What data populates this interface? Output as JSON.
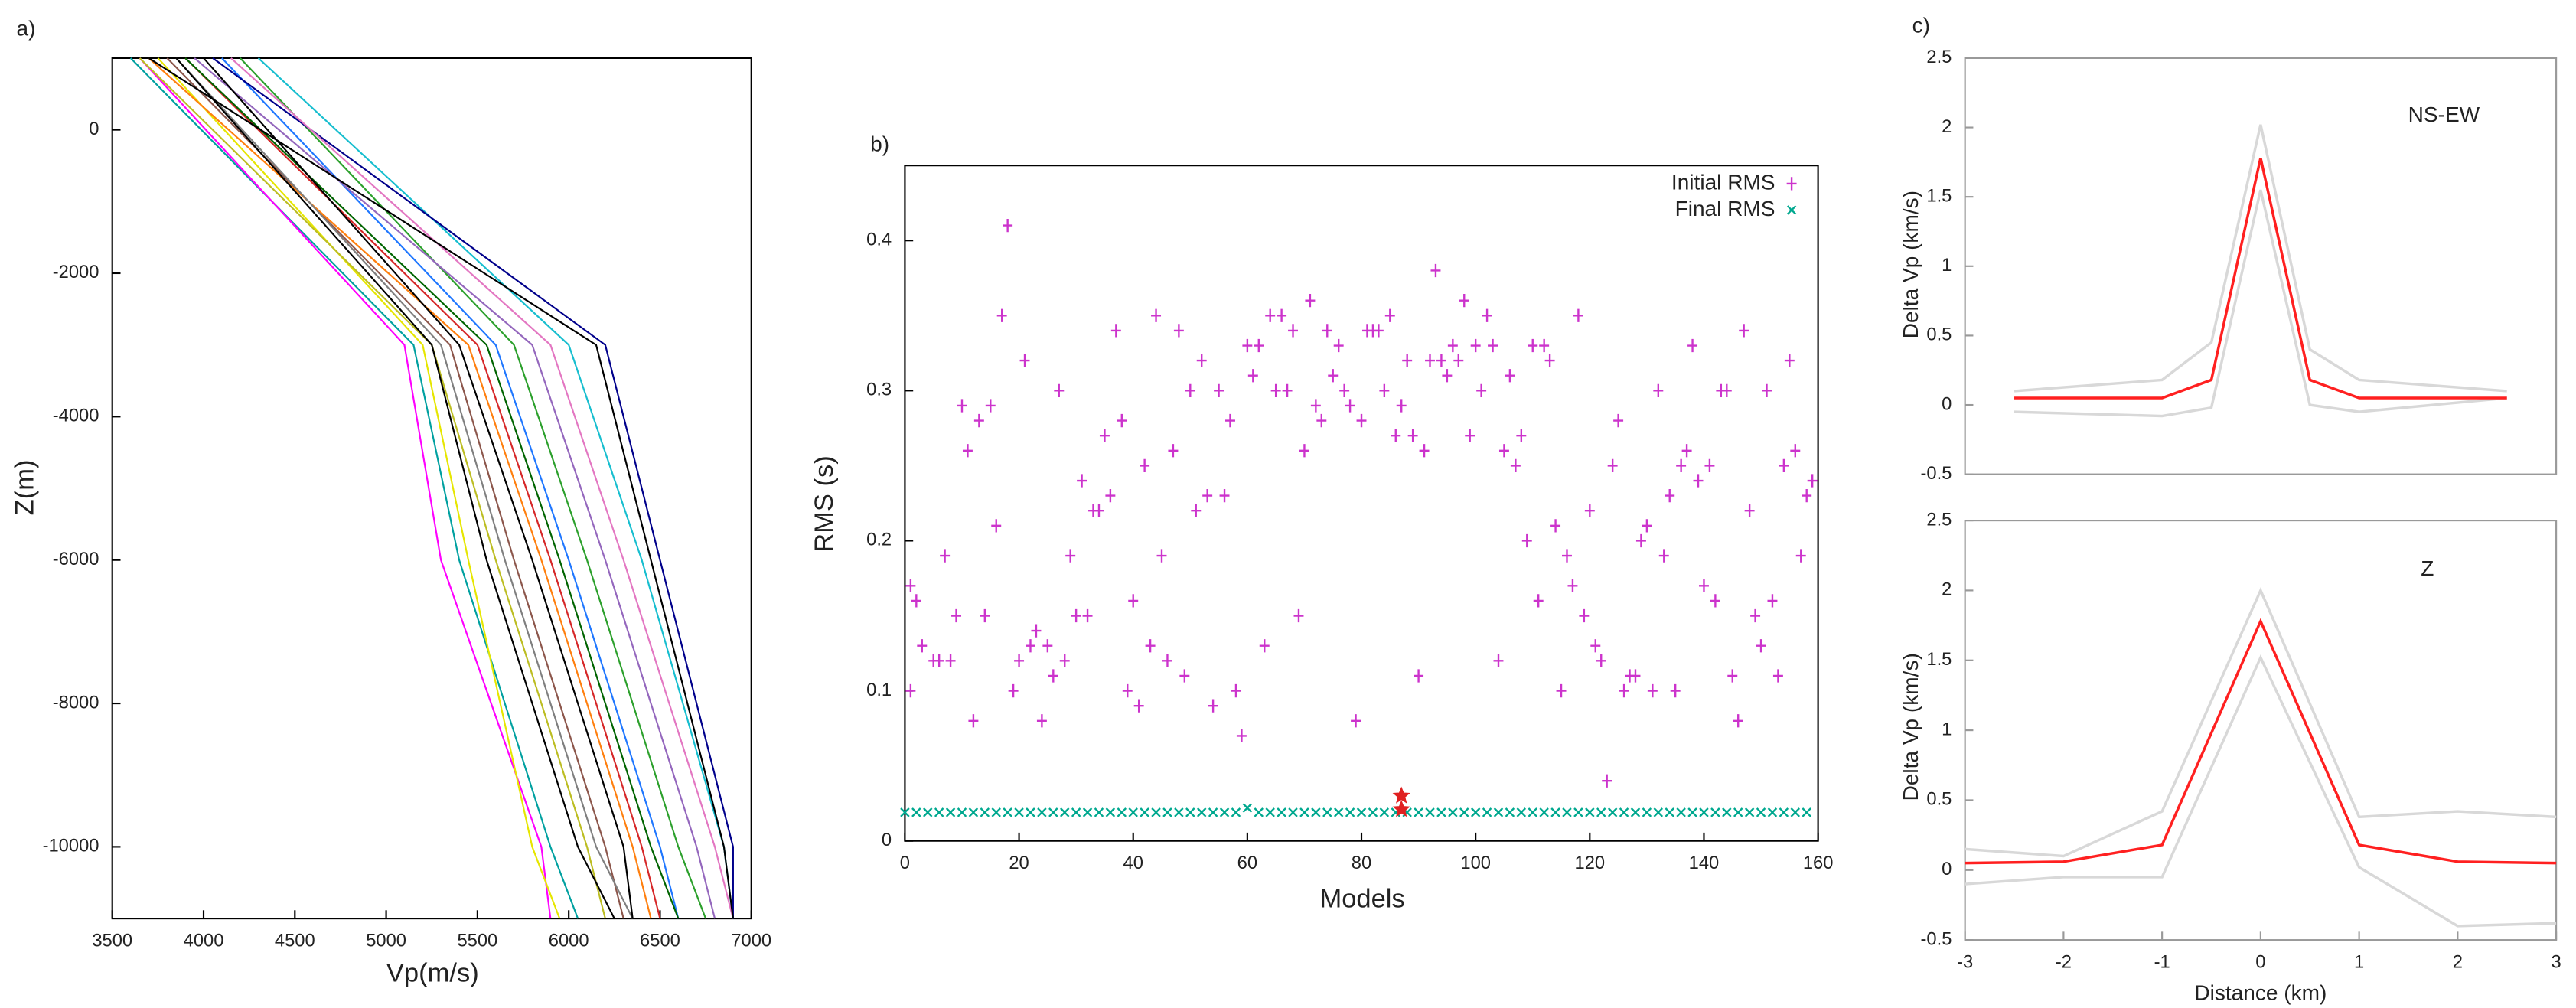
{
  "chart_data": [
    {
      "type": "line",
      "label": "a)",
      "x_label": "Vp(m/s)",
      "y_label": "Z(m)",
      "xlim": [
        3500,
        7000
      ],
      "xticks": [
        3500,
        4000,
        4500,
        5000,
        5500,
        6000,
        6500,
        7000
      ],
      "ylim": [
        -11000,
        1000
      ],
      "yticks": [
        0,
        -2000,
        -4000,
        -6000,
        -8000,
        -10000
      ],
      "y": [
        1000,
        -3000,
        -6000,
        -10000,
        -11000
      ],
      "series": [
        {
          "color": "#00a0a0",
          "values": [
            3600,
            5150,
            5400,
            5900,
            6050
          ]
        },
        {
          "color": "#ff00ff",
          "values": [
            3650,
            5100,
            5300,
            5850,
            5900
          ]
        },
        {
          "color": "#1f77ff",
          "values": [
            4100,
            5600,
            6000,
            6500,
            6600
          ]
        },
        {
          "color": "#e6e600",
          "values": [
            3750,
            5200,
            5450,
            5800,
            5950
          ]
        },
        {
          "color": "#d62728",
          "values": [
            3900,
            5500,
            5900,
            6400,
            6500
          ]
        },
        {
          "color": "#2ca02c",
          "values": [
            4200,
            5700,
            6100,
            6600,
            6750
          ]
        },
        {
          "color": "#8c564b",
          "values": [
            3800,
            5350,
            5700,
            6200,
            6300
          ]
        },
        {
          "color": "#9467bd",
          "values": [
            3950,
            5800,
            6200,
            6700,
            6800
          ]
        },
        {
          "color": "#ff7f0e",
          "values": [
            3700,
            5450,
            5850,
            6350,
            6450
          ]
        },
        {
          "color": "#17becf",
          "values": [
            4300,
            6000,
            6400,
            6850,
            6900
          ]
        },
        {
          "color": "#7f7f7f",
          "values": [
            3850,
            5300,
            5650,
            6150,
            6350
          ]
        },
        {
          "color": "#00008b",
          "values": [
            4050,
            6200,
            6500,
            6900,
            6900
          ]
        },
        {
          "color": "#bcbd22",
          "values": [
            3650,
            5250,
            5600,
            6100,
            6200
          ]
        },
        {
          "color": "#e377c2",
          "values": [
            4150,
            5900,
            6300,
            6800,
            6900
          ]
        },
        {
          "color": "#006400",
          "values": [
            3900,
            5550,
            5950,
            6450,
            6600
          ]
        },
        {
          "color": "#000000",
          "values": [
            3850,
            5250,
            5550,
            6050,
            6250
          ]
        },
        {
          "color": "#000000",
          "values": [
            4000,
            5400,
            5800,
            6300,
            6350
          ]
        },
        {
          "color": "#000000",
          "values": [
            3700,
            6150,
            6450,
            6850,
            6900
          ]
        }
      ]
    },
    {
      "type": "scatter",
      "label": "b)",
      "x_label": "Models",
      "y_label": "RMS (s)",
      "xlim": [
        0,
        160
      ],
      "xticks": [
        0,
        20,
        40,
        60,
        80,
        100,
        120,
        140,
        160
      ],
      "ylim": [
        0,
        0.45
      ],
      "yticks": [
        0,
        0.1,
        0.2,
        0.3,
        0.4
      ],
      "legend": "upper right",
      "series": [
        {
          "name": "Initial RMS",
          "color": "#cc33cc",
          "marker": "plus",
          "x": [
            1,
            1,
            2,
            3,
            5,
            6,
            7,
            8,
            9,
            10,
            11,
            12,
            13,
            14,
            15,
            16,
            17,
            18,
            19,
            20,
            21,
            22,
            23,
            24,
            25,
            26,
            27,
            28,
            29,
            30,
            31,
            32,
            33,
            34,
            35,
            36,
            37,
            38,
            39,
            40,
            41,
            42,
            43,
            44,
            45,
            46,
            47,
            48,
            49,
            50,
            51,
            52,
            53,
            54,
            55,
            56,
            57,
            58,
            59,
            60,
            61,
            62,
            63,
            64,
            65,
            66,
            67,
            68,
            69,
            70,
            71,
            72,
            73,
            74,
            75,
            76,
            77,
            78,
            79,
            80,
            81,
            82,
            83,
            84,
            85,
            86,
            87,
            88,
            89,
            90,
            91,
            92,
            93,
            94,
            95,
            96,
            97,
            98,
            99,
            100,
            101,
            102,
            103,
            104,
            105,
            106,
            107,
            108,
            109,
            110,
            111,
            112,
            113,
            114,
            115,
            116,
            117,
            118,
            119,
            120,
            121,
            122,
            123,
            124,
            125,
            126,
            127,
            128,
            129,
            130,
            131,
            132,
            133,
            134,
            135,
            136,
            137,
            138,
            139,
            140,
            141,
            142,
            143,
            144,
            145,
            146,
            147,
            148,
            149,
            150,
            151,
            152,
            153,
            154,
            155,
            156,
            157,
            158,
            159
          ],
          "values": [
            0.1,
            0.17,
            0.16,
            0.13,
            0.12,
            0.12,
            0.19,
            0.12,
            0.15,
            0.29,
            0.26,
            0.08,
            0.28,
            0.15,
            0.29,
            0.21,
            0.35,
            0.41,
            0.1,
            0.12,
            0.32,
            0.13,
            0.14,
            0.08,
            0.13,
            0.11,
            0.3,
            0.12,
            0.19,
            0.15,
            0.24,
            0.15,
            0.22,
            0.22,
            0.27,
            0.23,
            0.34,
            0.28,
            0.1,
            0.16,
            0.09,
            0.25,
            0.13,
            0.35,
            0.19,
            0.12,
            0.26,
            0.34,
            0.11,
            0.3,
            0.22,
            0.32,
            0.23,
            0.09,
            0.3,
            0.23,
            0.28,
            0.1,
            0.07,
            0.33,
            0.31,
            0.33,
            0.13,
            0.35,
            0.3,
            0.35,
            0.3,
            0.34,
            0.15,
            0.26,
            0.36,
            0.29,
            0.28,
            0.34,
            0.31,
            0.33,
            0.3,
            0.29,
            0.08,
            0.28,
            0.34,
            0.34,
            0.34,
            0.3,
            0.35,
            0.27,
            0.29,
            0.32,
            0.27,
            0.11,
            0.26,
            0.32,
            0.38,
            0.32,
            0.31,
            0.33,
            0.32,
            0.36,
            0.27,
            0.33,
            0.3,
            0.35,
            0.33,
            0.12,
            0.26,
            0.31,
            0.25,
            0.27,
            0.2,
            0.33,
            0.16,
            0.33,
            0.32,
            0.21,
            0.1,
            0.19,
            0.17,
            0.35,
            0.15,
            0.22,
            0.13,
            0.12,
            0.04,
            0.25,
            0.28,
            0.1,
            0.11,
            0.11,
            0.2,
            0.21,
            0.1,
            0.3,
            0.19,
            0.23,
            0.1,
            0.25,
            0.26,
            0.33,
            0.24,
            0.17,
            0.25,
            0.16,
            0.3,
            0.3,
            0.11,
            0.08,
            0.34,
            0.22,
            0.15,
            0.13,
            0.3,
            0.16,
            0.11,
            0.25,
            0.32,
            0.26,
            0.19,
            0.23,
            0.24
          ]
        },
        {
          "name": "Final RMS",
          "color": "#00a88f",
          "marker": "cross",
          "x": [
            0,
            2,
            4,
            6,
            8,
            10,
            12,
            14,
            16,
            18,
            20,
            22,
            24,
            26,
            28,
            30,
            32,
            34,
            36,
            38,
            40,
            42,
            44,
            46,
            48,
            50,
            52,
            54,
            56,
            58,
            60,
            62,
            64,
            66,
            68,
            70,
            72,
            74,
            76,
            78,
            80,
            82,
            84,
            86,
            88,
            90,
            92,
            94,
            96,
            98,
            100,
            102,
            104,
            106,
            108,
            110,
            112,
            114,
            116,
            118,
            120,
            122,
            124,
            126,
            128,
            130,
            132,
            134,
            136,
            138,
            140,
            142,
            144,
            146,
            148,
            150,
            152,
            154,
            156,
            158
          ],
          "values": [
            0.019,
            0.019,
            0.019,
            0.019,
            0.019,
            0.019,
            0.019,
            0.019,
            0.019,
            0.019,
            0.019,
            0.019,
            0.019,
            0.019,
            0.019,
            0.019,
            0.019,
            0.019,
            0.019,
            0.019,
            0.019,
            0.019,
            0.019,
            0.019,
            0.019,
            0.019,
            0.019,
            0.019,
            0.019,
            0.019,
            0.022,
            0.019,
            0.019,
            0.019,
            0.019,
            0.019,
            0.019,
            0.019,
            0.019,
            0.019,
            0.019,
            0.019,
            0.019,
            0.019,
            0.019,
            0.019,
            0.019,
            0.019,
            0.019,
            0.019,
            0.019,
            0.019,
            0.019,
            0.019,
            0.019,
            0.019,
            0.019,
            0.019,
            0.019,
            0.019,
            0.019,
            0.019,
            0.019,
            0.019,
            0.019,
            0.019,
            0.019,
            0.019,
            0.019,
            0.019,
            0.019,
            0.019,
            0.019,
            0.019,
            0.019,
            0.019,
            0.019,
            0.019,
            0.019,
            0.019
          ]
        },
        {
          "color": "#e02020",
          "marker": "star",
          "x": [
            87,
            87
          ],
          "values": [
            0.03,
            0.021
          ]
        }
      ]
    },
    {
      "type": "line",
      "label": "c)",
      "y_label": "Delta Vp (km/s)",
      "annotation": "NS-EW",
      "xlim": [
        -3,
        3
      ],
      "ylim": [
        -0.5,
        2.5
      ],
      "yticks": [
        2.5,
        2,
        1.5,
        1,
        0.5,
        0,
        -0.5
      ],
      "x": [
        -2.5,
        -1,
        -0.5,
        0,
        0.5,
        1,
        2.5
      ],
      "series": [
        {
          "color": "#d8d8d8",
          "values": [
            0.1,
            0.18,
            0.45,
            2.02,
            0.4,
            0.18,
            0.1
          ]
        },
        {
          "color": "#d8d8d8",
          "values": [
            -0.05,
            -0.08,
            -0.02,
            1.55,
            0,
            -0.05,
            0.05
          ]
        },
        {
          "color": "#ff2020",
          "values": [
            0.05,
            0.05,
            0.18,
            1.78,
            0.18,
            0.05,
            0.05
          ]
        }
      ]
    },
    {
      "type": "line",
      "y_label": "Delta Vp (km/s)",
      "x_label": "Distance (km)",
      "annotation": "Z",
      "xlim": [
        -3,
        3
      ],
      "xticks": [
        -3,
        -2,
        -1,
        0,
        1,
        2,
        3
      ],
      "ylim": [
        -0.5,
        2.5
      ],
      "yticks": [
        2.5,
        2,
        1.5,
        1,
        0.5,
        0,
        -0.5
      ],
      "x": [
        -3,
        -2,
        -1,
        0,
        1,
        2,
        3
      ],
      "series": [
        {
          "color": "#d8d8d8",
          "values": [
            0.15,
            0.1,
            0.42,
            2.0,
            0.38,
            0.42,
            0.38
          ]
        },
        {
          "color": "#d8d8d8",
          "values": [
            -0.1,
            -0.05,
            -0.05,
            1.52,
            0.02,
            -0.4,
            -0.38
          ]
        },
        {
          "color": "#ff2020",
          "values": [
            0.05,
            0.06,
            0.18,
            1.78,
            0.18,
            0.06,
            0.05
          ]
        }
      ]
    }
  ]
}
